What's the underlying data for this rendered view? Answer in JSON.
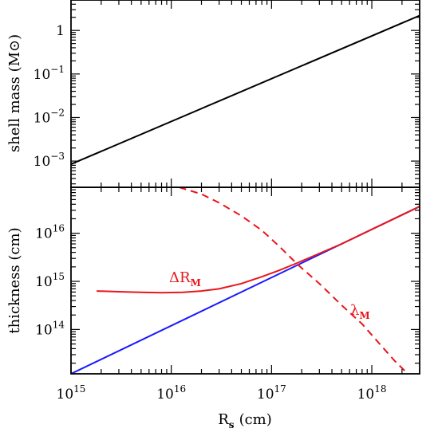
{
  "chart_data": [
    {
      "type": "line",
      "panel": "top",
      "xscale": "log",
      "yscale": "log",
      "xlim": [
        1000000000000000.0,
        3e+18
      ],
      "ylim": [
        0.00025,
        5
      ],
      "ylabel": "shell mass (M⊙)",
      "yticks": [
        {
          "value": 0.001,
          "label": "10",
          "exp": "−3"
        },
        {
          "value": 0.01,
          "label": "10",
          "exp": "−2"
        },
        {
          "value": 0.1,
          "label": "10",
          "exp": "−1"
        },
        {
          "value": 1,
          "label": "1",
          "exp": ""
        }
      ],
      "series": [
        {
          "color": "#000000",
          "style": "solid",
          "x": [
            1000000000000000.0,
            3e+18
          ],
          "y": [
            0.00085,
            2.2
          ]
        }
      ]
    },
    {
      "type": "line",
      "panel": "bottom",
      "xscale": "log",
      "yscale": "log",
      "xlim": [
        1000000000000000.0,
        3e+18
      ],
      "ylim": [
        12000000000000.0,
        9e+16
      ],
      "xlabel": "R",
      "xlabel_sub": "s",
      "xlabel_unit": "(cm)",
      "ylabel": "thickness (cm)",
      "xticks": [
        {
          "value": 1000000000000000.0,
          "label": "10",
          "exp": "15"
        },
        {
          "value": 1e+16,
          "label": "10",
          "exp": "16"
        },
        {
          "value": 1e+17,
          "label": "10",
          "exp": "17"
        },
        {
          "value": 1e+18,
          "label": "10",
          "exp": "18"
        }
      ],
      "yticks": [
        {
          "value": 100000000000000.0,
          "label": "10",
          "exp": "14"
        },
        {
          "value": 1000000000000000.0,
          "label": "10",
          "exp": "15"
        },
        {
          "value": 1e+16,
          "label": "10",
          "exp": "16"
        }
      ],
      "series": [
        {
          "color": "#1a1aff",
          "style": "solid",
          "x": [
            1000000000000000.0,
            3e+18
          ],
          "y": [
            12000000000000.0,
            3.6e+16
          ]
        },
        {
          "color": "#e8161b",
          "style": "solid",
          "x": [
            1800000000000000.0,
            3000000000000000.0,
            5000000000000000.0,
            8000000000000000.0,
            1.3e+16,
            2e+16,
            3e+16,
            5e+16,
            8e+16,
            1.2e+17,
            1.8e+17,
            3e+17,
            5e+17,
            1e+18,
            2e+18,
            3e+18
          ],
          "y": [
            630000000000000.0,
            610000000000000.0,
            590000000000000.0,
            580000000000000.0,
            590000000000000.0,
            630000000000000.0,
            700000000000000.0,
            900000000000000.0,
            1250000000000000.0,
            1700000000000000.0,
            2400000000000000.0,
            3800000000000000.0,
            6000000000000000.0,
            1.2e+16,
            2.4e+16,
            3.6e+16
          ]
        },
        {
          "color": "#e8161b",
          "style": "dashed",
          "x": [
            1.2e+16,
            2e+16,
            3e+16,
            5e+16,
            8e+16,
            1.2e+17,
            1.8e+17,
            3e+17,
            5e+17,
            8e+17,
            1.2e+18,
            1.7e+18,
            2.2e+18
          ],
          "y": [
            9e+16,
            6.5e+16,
            4.3e+16,
            2.3e+16,
            1.15e+16,
            5300000000000000.0,
            2300000000000000.0,
            900000000000000.0,
            320000000000000.0,
            130000000000000.0,
            50000000000000.0,
            22000000000000.0,
            13000000000000.0
          ]
        }
      ],
      "annotations": [
        {
          "text": "ΔR",
          "sub": "M",
          "color": "#e8161b"
        },
        {
          "text": "λ",
          "sub": "M",
          "color": "#e8161b"
        }
      ]
    }
  ]
}
